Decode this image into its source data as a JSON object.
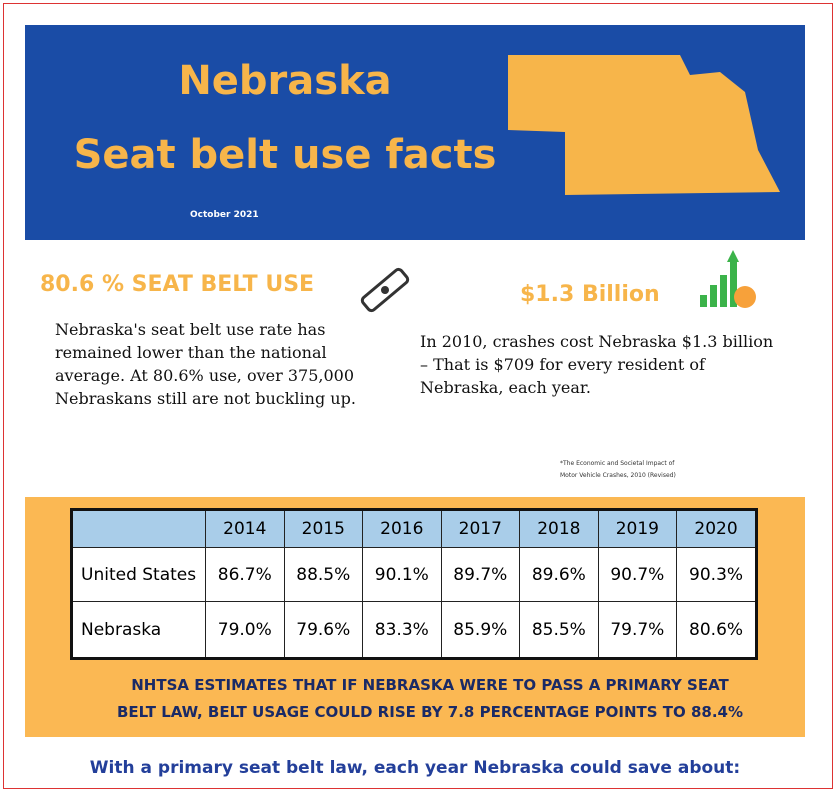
{
  "header": {
    "title_line1": "Nebraska",
    "title_line2": "Seat belt use facts",
    "date": "October 2021"
  },
  "stat_left": {
    "heading": "80.6 % SEAT BELT USE",
    "text": "Nebraska's seat belt use rate has remained lower than the national average. At 80.6% use, over 375,000 Nebraskans still are not buckling up."
  },
  "stat_right": {
    "heading": "$1.3 Billion",
    "text": "In 2010, crashes cost Nebraska $1.3 billion – That is $709 for every resident of Nebraska, each year.",
    "footnote": [
      "*The Economic and Societal Impact of",
      "Motor Vehicle Crashes, 2010 (Revised)"
    ]
  },
  "table": {
    "columns": [
      "2014",
      "2015",
      "2016",
      "2017",
      "2018",
      "2019",
      "2020"
    ],
    "rows": [
      {
        "label": "United States",
        "values": [
          "86.7%",
          "88.5%",
          "90.1%",
          "89.7%",
          "89.6%",
          "90.7%",
          "90.3%"
        ]
      },
      {
        "label": "Nebraska",
        "values": [
          "79.0%",
          "79.6%",
          "83.3%",
          "85.9%",
          "85.5%",
          "79.7%",
          "80.6%"
        ]
      }
    ]
  },
  "estimate": [
    "NHTSA ESTIMATES THAT IF NEBRASKA WERE TO PASS A PRIMARY SEAT",
    "BELT LAW, BELT USAGE COULD RISE BY 7.8 PERCENTAGE POINTS TO 88.4%"
  ],
  "footer": "With a primary seat belt law, each year Nebraska could save about:"
}
